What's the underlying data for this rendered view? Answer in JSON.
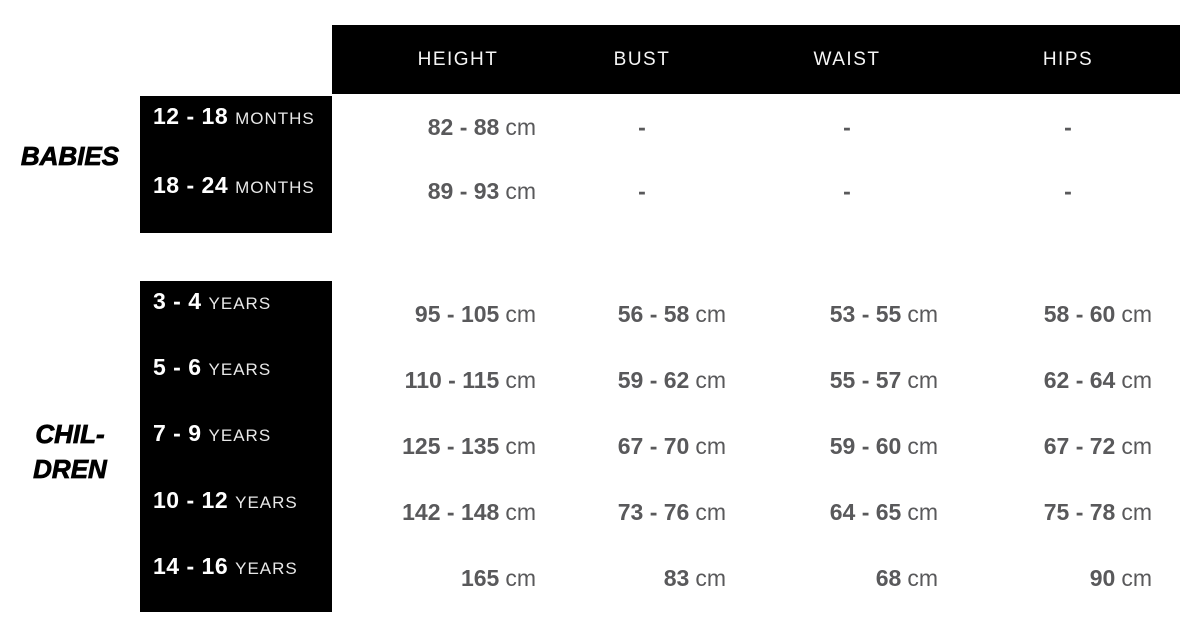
{
  "colors": {
    "box_bg": "#000000",
    "header_text": "#f5f5f5",
    "size_label_text": "#ffffff",
    "age_unit_text": "#e8e8e8",
    "data_text": "#59595b",
    "group_label_text": "#000000",
    "background": "#ffffff"
  },
  "chart_data": {
    "type": "table",
    "columns": [
      "HEIGHT",
      "BUST",
      "WAIST",
      "HIPS"
    ],
    "unit": "cm",
    "groups": [
      {
        "label_lines": [
          "BABIES"
        ],
        "rows": [
          {
            "size_value": "12 - 18",
            "size_unit": "MONTHS",
            "cells": [
              {
                "v": "82 - 88",
                "u": "cm"
              },
              {
                "v": "-",
                "u": ""
              },
              {
                "v": "-",
                "u": ""
              },
              {
                "v": "-",
                "u": ""
              }
            ]
          },
          {
            "size_value": "18 - 24",
            "size_unit": "MONTHS",
            "cells": [
              {
                "v": "89 - 93",
                "u": "cm"
              },
              {
                "v": "-",
                "u": ""
              },
              {
                "v": "-",
                "u": ""
              },
              {
                "v": "-",
                "u": ""
              }
            ]
          }
        ]
      },
      {
        "label_lines": [
          "CHIL-",
          "DREN"
        ],
        "rows": [
          {
            "size_value": "3 - 4",
            "size_unit": "YEARS",
            "cells": [
              {
                "v": "95 - 105",
                "u": "cm"
              },
              {
                "v": "56 - 58",
                "u": "cm"
              },
              {
                "v": "53 - 55",
                "u": "cm"
              },
              {
                "v": "58 - 60",
                "u": "cm"
              }
            ]
          },
          {
            "size_value": "5 - 6",
            "size_unit": "YEARS",
            "cells": [
              {
                "v": "110 - 115",
                "u": "cm"
              },
              {
                "v": "59 - 62",
                "u": "cm"
              },
              {
                "v": "55 - 57",
                "u": "cm"
              },
              {
                "v": "62 - 64",
                "u": "cm"
              }
            ]
          },
          {
            "size_value": "7 - 9",
            "size_unit": "YEARS",
            "cells": [
              {
                "v": "125 - 135",
                "u": "cm"
              },
              {
                "v": "67 - 70",
                "u": "cm"
              },
              {
                "v": "59 - 60",
                "u": "cm"
              },
              {
                "v": "67 - 72",
                "u": "cm"
              }
            ]
          },
          {
            "size_value": "10 - 12",
            "size_unit": "YEARS",
            "cells": [
              {
                "v": "142 - 148",
                "u": "cm"
              },
              {
                "v": "73 - 76",
                "u": "cm"
              },
              {
                "v": "64 - 65",
                "u": "cm"
              },
              {
                "v": "75 - 78",
                "u": "cm"
              }
            ]
          },
          {
            "size_value": "14 - 16",
            "size_unit": "YEARS",
            "cells": [
              {
                "v": "165",
                "u": "cm"
              },
              {
                "v": "83",
                "u": "cm"
              },
              {
                "v": "68",
                "u": "cm"
              },
              {
                "v": "90",
                "u": "cm"
              }
            ]
          }
        ]
      }
    ]
  }
}
